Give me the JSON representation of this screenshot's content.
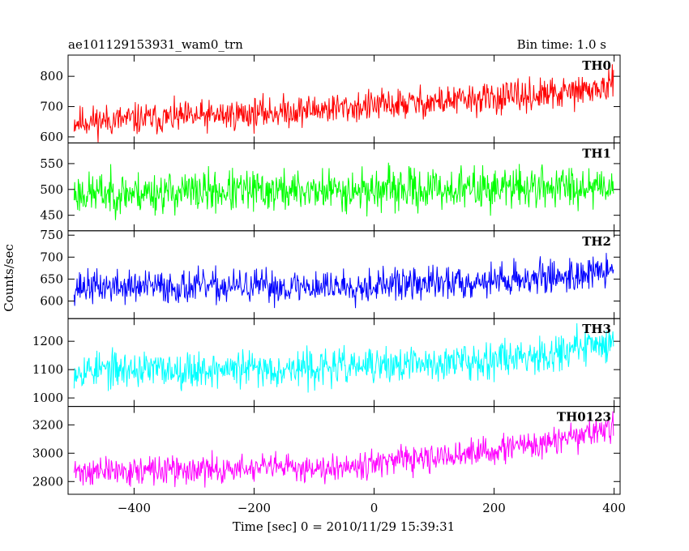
{
  "chart_data": {
    "type": "line",
    "title": "ae101129153931_wam0_trn",
    "subtitle": "Bin time: 1.0 s",
    "xlabel": "Time [sec] 0 = 2010/11/29 15:39:31",
    "ylabel": "Counts/sec",
    "xlim": [
      -510,
      410
    ],
    "data_xrange": [
      -500,
      399
    ],
    "x_ticks": [
      -400,
      -200,
      0,
      200,
      400
    ],
    "panels": [
      {
        "name": "TH0",
        "color": "#ff0000",
        "ylim": [
          580,
          870
        ],
        "y_ticks": [
          600,
          700,
          800
        ],
        "trend": [
          [
            -500,
            650
          ],
          [
            -300,
            665
          ],
          [
            -100,
            690
          ],
          [
            100,
            715
          ],
          [
            300,
            740
          ],
          [
            399,
            765
          ]
        ],
        "noise": 45,
        "seed": 11
      },
      {
        "name": "TH1",
        "color": "#00ff00",
        "ylim": [
          420,
          590
        ],
        "y_ticks": [
          450,
          500,
          550
        ],
        "trend": [
          [
            -500,
            492
          ],
          [
            -300,
            495
          ],
          [
            -100,
            498
          ],
          [
            100,
            500
          ],
          [
            300,
            505
          ],
          [
            399,
            510
          ]
        ],
        "noise": 35,
        "seed": 23
      },
      {
        "name": "TH2",
        "color": "#0000ff",
        "ylim": [
          560,
          760
        ],
        "y_ticks": [
          600,
          650,
          700,
          750
        ],
        "trend": [
          [
            -500,
            632
          ],
          [
            -300,
            632
          ],
          [
            -100,
            633
          ],
          [
            100,
            640
          ],
          [
            300,
            655
          ],
          [
            399,
            668
          ]
        ],
        "noise": 33,
        "seed": 37
      },
      {
        "name": "TH3",
        "color": "#00ffff",
        "ylim": [
          970,
          1280
        ],
        "y_ticks": [
          1000,
          1100,
          1200
        ],
        "trend": [
          [
            -500,
            1100
          ],
          [
            -300,
            1100
          ],
          [
            -100,
            1105
          ],
          [
            100,
            1120
          ],
          [
            300,
            1160
          ],
          [
            399,
            1200
          ]
        ],
        "noise": 55,
        "seed": 53
      },
      {
        "name": "TH0123",
        "color": "#ff00ff",
        "ylim": [
          2710,
          3330
        ],
        "y_ticks": [
          2800,
          3000,
          3200
        ],
        "trend": [
          [
            -500,
            2870
          ],
          [
            -300,
            2880
          ],
          [
            -100,
            2900
          ],
          [
            100,
            2960
          ],
          [
            300,
            3080
          ],
          [
            399,
            3180
          ]
        ],
        "noise": 85,
        "seed": 71
      }
    ]
  }
}
